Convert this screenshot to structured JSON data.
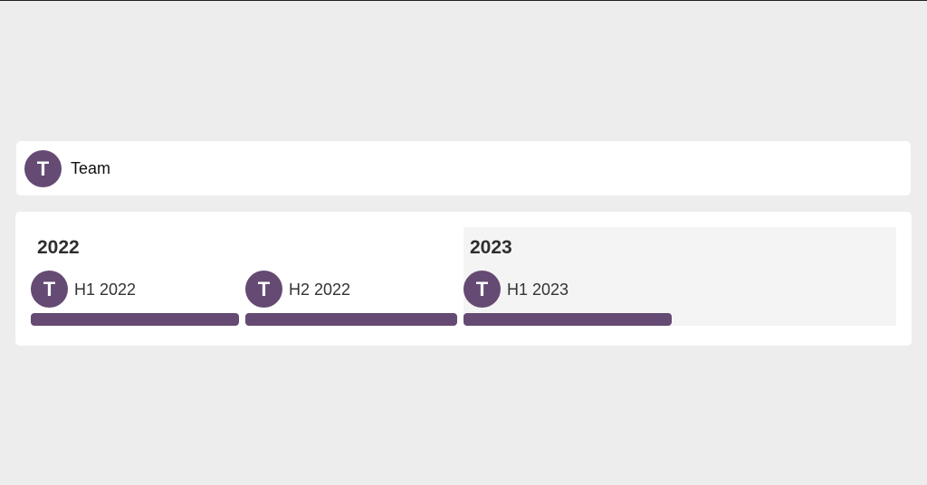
{
  "theme": {
    "accent": "#654a73"
  },
  "team": {
    "avatar_initial": "T",
    "label": "Team"
  },
  "timeline": {
    "years": [
      {
        "label": "2022"
      },
      {
        "label": "2023"
      }
    ],
    "periods": [
      {
        "avatar_initial": "T",
        "label": "H1 2022"
      },
      {
        "avatar_initial": "T",
        "label": "H2 2022"
      },
      {
        "avatar_initial": "T",
        "label": "H1 2023"
      }
    ]
  }
}
